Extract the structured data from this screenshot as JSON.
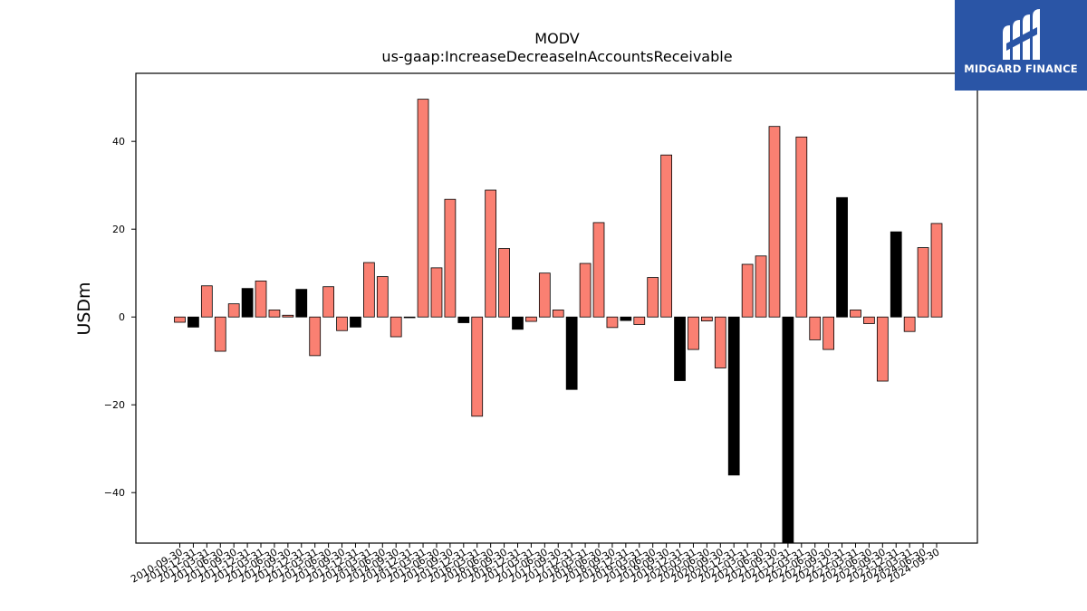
{
  "chart_data": {
    "type": "bar",
    "title": "MODV",
    "subtitle": "us-gaap:IncreaseDecreaseInAccountsReceivable",
    "ylabel": "USDm",
    "xlabel": "",
    "ylim": [
      -51.5,
      55.5
    ],
    "yticks": [
      -40,
      -20,
      0,
      20,
      40
    ],
    "ytick_labels": [
      "−40",
      "−20",
      "0",
      "20",
      "40"
    ],
    "grid": false,
    "legend": "none",
    "colors": {
      "positive_default": "#fa8072",
      "highlight": "#000000",
      "edge": "#000000"
    },
    "categories": [
      "2010-09-30",
      "2010-12-31",
      "2011-03-31",
      "2011-06-30",
      "2011-09-30",
      "2011-12-31",
      "2012-03-31",
      "2012-06-30",
      "2012-09-30",
      "2012-12-31",
      "2013-03-31",
      "2013-06-30",
      "2013-09-30",
      "2013-12-31",
      "2014-03-31",
      "2014-06-30",
      "2014-09-30",
      "2014-12-31",
      "2015-03-31",
      "2015-06-30",
      "2015-09-30",
      "2015-12-31",
      "2016-03-31",
      "2016-06-30",
      "2016-09-30",
      "2016-12-31",
      "2017-03-31",
      "2017-06-30",
      "2017-09-30",
      "2017-12-31",
      "2018-03-31",
      "2018-06-30",
      "2018-09-30",
      "2018-12-31",
      "2019-03-31",
      "2019-06-30",
      "2019-09-30",
      "2019-12-31",
      "2020-03-31",
      "2020-06-30",
      "2020-09-30",
      "2020-12-31",
      "2021-03-31",
      "2021-06-30",
      "2021-09-30",
      "2021-12-31",
      "2022-03-31",
      "2022-06-30",
      "2022-09-30",
      "2022-12-31",
      "2023-03-31",
      "2023-06-30",
      "2023-09-30",
      "2023-12-31",
      "2024-03-31",
      "2024-06-30",
      "2024-09-30"
    ],
    "values": [
      -1.2,
      -2.3,
      7.1,
      -7.8,
      3.0,
      6.5,
      8.2,
      1.6,
      0.4,
      6.3,
      -8.8,
      6.9,
      -3.1,
      -2.3,
      12.4,
      9.2,
      -4.5,
      0.0,
      49.6,
      11.2,
      26.8,
      -1.3,
      -22.6,
      28.9,
      15.6,
      -2.8,
      -1.0,
      10.0,
      1.6,
      -16.5,
      12.2,
      21.5,
      -2.4,
      -0.8,
      -1.7,
      9.0,
      36.9,
      -14.5,
      -7.4,
      -0.9,
      -11.6,
      -36.0,
      12.0,
      13.9,
      43.4,
      -51.5,
      41.0,
      -5.2,
      -7.4,
      27.2,
      1.6,
      -1.5,
      -14.6,
      19.4,
      -3.3,
      15.8,
      21.3
    ],
    "highlighted": [
      false,
      true,
      false,
      false,
      false,
      true,
      false,
      false,
      false,
      true,
      false,
      false,
      false,
      true,
      false,
      false,
      false,
      false,
      false,
      false,
      false,
      true,
      false,
      false,
      false,
      true,
      false,
      false,
      false,
      true,
      false,
      false,
      false,
      true,
      false,
      false,
      false,
      true,
      false,
      false,
      false,
      true,
      false,
      false,
      false,
      true,
      false,
      false,
      false,
      true,
      false,
      false,
      false,
      true,
      false,
      false,
      false
    ]
  },
  "logo": {
    "text": "MIDGARD FINANCE",
    "background": "#2a55a6",
    "icon": "midgard-logo-icon"
  }
}
